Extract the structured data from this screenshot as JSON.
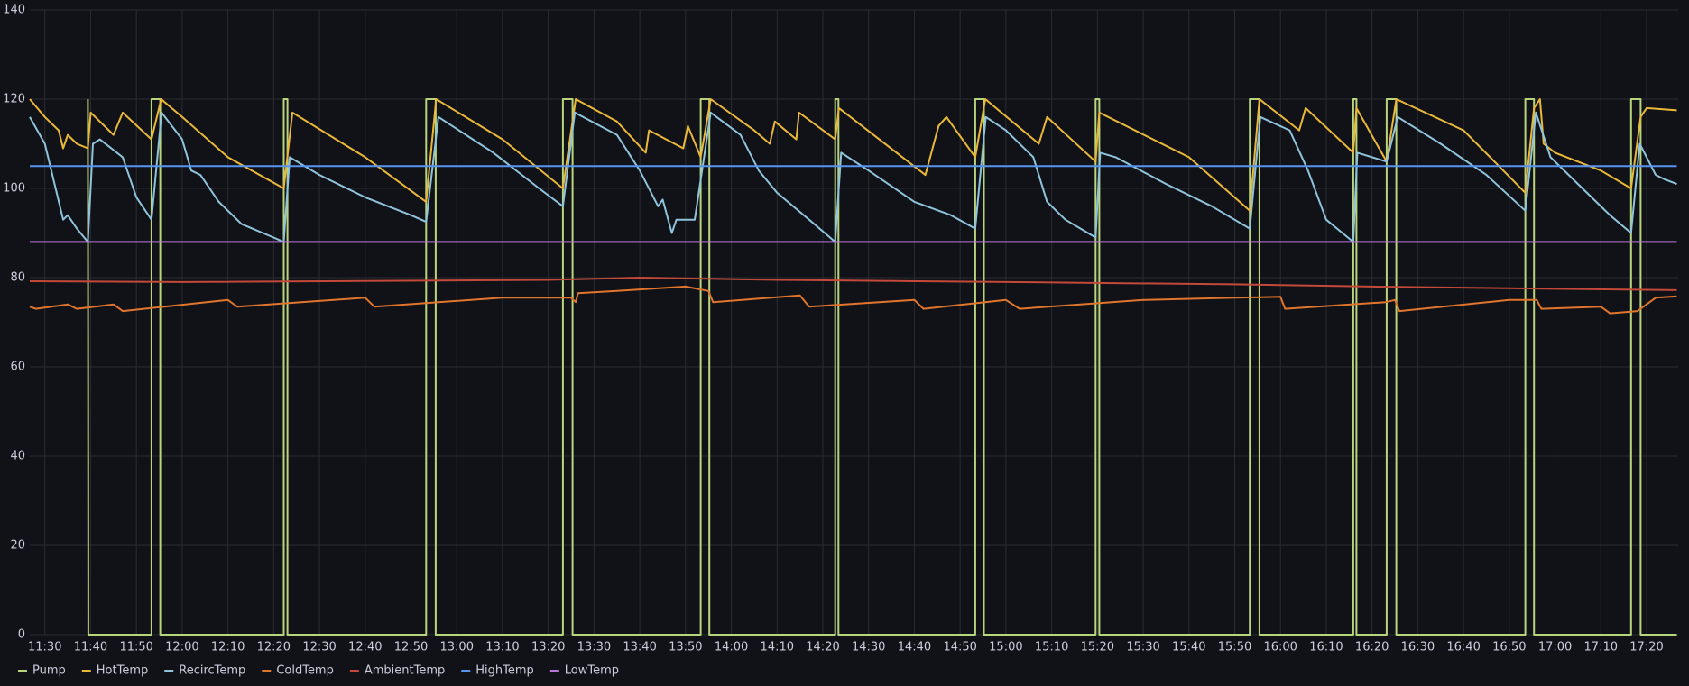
{
  "chart_data": {
    "type": "line",
    "grid": true,
    "legend": "bottom-left",
    "xlim": [
      686.7,
      1046.9
    ],
    "ylim": [
      0,
      140
    ],
    "yticks": [
      0,
      20,
      40,
      60,
      80,
      100,
      120,
      140
    ],
    "xticks": [
      {
        "value": 690,
        "label": "11:30"
      },
      {
        "value": 700,
        "label": "11:40"
      },
      {
        "value": 710,
        "label": "11:50"
      },
      {
        "value": 720,
        "label": "12:00"
      },
      {
        "value": 730,
        "label": "12:10"
      },
      {
        "value": 740,
        "label": "12:20"
      },
      {
        "value": 750,
        "label": "12:30"
      },
      {
        "value": 760,
        "label": "12:40"
      },
      {
        "value": 770,
        "label": "12:50"
      },
      {
        "value": 780,
        "label": "13:00"
      },
      {
        "value": 790,
        "label": "13:10"
      },
      {
        "value": 800,
        "label": "13:20"
      },
      {
        "value": 810,
        "label": "13:30"
      },
      {
        "value": 820,
        "label": "13:40"
      },
      {
        "value": 830,
        "label": "13:50"
      },
      {
        "value": 840,
        "label": "14:00"
      },
      {
        "value": 850,
        "label": "14:10"
      },
      {
        "value": 860,
        "label": "14:20"
      },
      {
        "value": 870,
        "label": "14:30"
      },
      {
        "value": 880,
        "label": "14:40"
      },
      {
        "value": 890,
        "label": "14:50"
      },
      {
        "value": 900,
        "label": "15:00"
      },
      {
        "value": 910,
        "label": "15:10"
      },
      {
        "value": 920,
        "label": "15:20"
      },
      {
        "value": 930,
        "label": "15:30"
      },
      {
        "value": 940,
        "label": "15:40"
      },
      {
        "value": 950,
        "label": "15:50"
      },
      {
        "value": 960,
        "label": "16:00"
      },
      {
        "value": 970,
        "label": "16:10"
      },
      {
        "value": 980,
        "label": "16:20"
      },
      {
        "value": 990,
        "label": "16:30"
      },
      {
        "value": 1000,
        "label": "16:40"
      },
      {
        "value": 1010,
        "label": "16:50"
      },
      {
        "value": 1020,
        "label": "17:00"
      },
      {
        "value": 1030,
        "label": "17:10"
      },
      {
        "value": 1040,
        "label": "17:20"
      }
    ],
    "series": [
      {
        "name": "Pump",
        "color": "#b8d47c",
        "x": [
          699.4,
          699.5,
          713.3,
          713.3,
          715.2,
          715.2,
          742.2,
          742.2,
          743.0,
          743.0,
          773.3,
          773.3,
          775.4,
          775.4,
          803.2,
          803.2,
          805.3,
          805.3,
          833.3,
          833.3,
          835.2,
          835.2,
          862.7,
          862.7,
          863.4,
          863.4,
          893.3,
          893.3,
          895.2,
          895.2,
          919.6,
          919.6,
          920.4,
          920.4,
          953.3,
          953.3,
          955.4,
          955.4,
          975.9,
          975.9,
          976.6,
          976.6,
          983.2,
          983.2,
          985.3,
          985.3,
          1013.5,
          1013.5,
          1015.4,
          1015.4,
          1036.6,
          1036.6,
          1038.7,
          1038.7,
          1046.6
        ],
        "values": [
          120,
          0,
          0,
          120,
          120,
          0,
          0,
          120,
          120,
          0,
          0,
          120,
          120,
          0,
          0,
          120,
          120,
          0,
          0,
          120,
          120,
          0,
          0,
          120,
          120,
          0,
          0,
          120,
          120,
          0,
          0,
          120,
          120,
          0,
          0,
          120,
          120,
          0,
          0,
          120,
          120,
          0,
          0,
          120,
          120,
          0,
          0,
          120,
          120,
          0,
          0,
          120,
          120,
          0,
          0
        ]
      },
      {
        "name": "HotTemp",
        "color": "#eab839",
        "x": [
          686.7,
          690,
          693,
          694,
          695,
          697,
          699.4,
          700,
          704,
          705,
          707,
          713.3,
          715.4,
          720,
          730,
          742.2,
          744.1,
          760,
          773.3,
          775.5,
          790,
          803.2,
          806,
          815,
          821.3,
          822,
          829.5,
          830.5,
          833.3,
          835.5,
          845,
          848.4,
          849.5,
          854.2,
          854.8,
          862.7,
          863.5,
          882.4,
          885.3,
          887,
          893.3,
          895.5,
          907.2,
          909,
          919.6,
          920.4,
          940,
          953.3,
          955.4,
          964.1,
          965.5,
          975.9,
          976.6,
          983.2,
          985.3,
          1000,
          1013.5,
          1015.4,
          1016.7,
          1017.5,
          1020,
          1030,
          1036.6,
          1038.7,
          1040,
          1046.6
        ],
        "values": [
          120,
          116,
          113,
          109,
          112,
          110,
          109,
          117,
          113,
          112,
          117,
          111,
          120,
          116,
          107,
          100,
          117,
          107,
          97,
          120,
          111,
          100,
          120,
          115,
          108,
          113,
          109,
          114,
          107,
          120,
          113,
          110,
          115,
          111,
          117,
          111,
          118,
          103,
          114,
          116,
          107,
          120,
          110,
          116,
          106,
          117,
          107,
          95,
          120,
          113,
          118,
          108,
          118,
          106,
          120,
          113,
          99,
          118,
          120,
          110,
          108,
          104,
          100,
          116,
          118,
          117.5
        ]
      },
      {
        "name": "RecircTemp",
        "color": "#8fc4dc",
        "x": [
          686.7,
          690,
          694,
          695,
          697,
          699.4,
          700.5,
          702,
          707,
          710,
          713.3,
          715.5,
          720,
          722,
          724,
          728,
          733,
          740,
          742.2,
          743.5,
          750,
          760,
          770,
          773.3,
          776,
          788,
          798,
          803.2,
          805.8,
          815,
          820,
          824,
          825,
          827,
          828,
          832,
          835.5,
          842,
          846,
          850,
          857,
          862.7,
          864,
          870,
          880,
          888,
          893.3,
          895.6,
          900,
          906,
          909,
          913,
          919.6,
          920.6,
          924,
          935,
          945,
          953.3,
          955.6,
          962,
          966,
          970,
          975.9,
          976.8,
          983.2,
          985.6,
          995,
          1005,
          1013.5,
          1015.8,
          1019,
          1025,
          1032,
          1036.6,
          1038.5,
          1042,
          1044,
          1046.6
        ],
        "values": [
          116,
          110,
          93,
          94,
          91,
          88,
          110,
          111,
          107,
          98,
          93,
          117,
          111,
          104,
          103,
          97,
          92,
          89,
          88,
          107,
          103,
          98,
          94,
          92.5,
          116,
          108,
          100,
          96,
          117,
          112,
          104,
          96,
          97.5,
          90,
          93,
          93,
          117,
          112,
          104,
          99,
          93,
          88,
          108,
          104,
          97,
          94,
          91,
          116,
          113,
          107,
          97,
          93,
          89,
          108,
          107,
          101,
          96,
          91,
          116,
          113,
          104,
          93,
          88,
          108,
          106,
          116,
          110,
          103,
          95,
          117,
          107,
          101,
          94,
          90,
          110,
          103,
          102,
          101
        ]
      },
      {
        "name": "ColdTemp",
        "color": "#e0752d",
        "x": [
          686.7,
          688,
          695,
          697,
          705,
          707,
          730,
          732,
          760,
          762,
          790,
          805,
          806,
          806.5,
          815,
          830,
          835,
          836,
          855,
          857,
          880,
          882,
          900,
          903,
          930,
          950,
          960,
          961,
          983,
          985,
          986,
          1010,
          1016,
          1017,
          1030,
          1032,
          1038,
          1042,
          1046.6
        ],
        "values": [
          73.5,
          73,
          74,
          73,
          74,
          72.5,
          75,
          73.5,
          75.5,
          73.5,
          75.5,
          75.5,
          74.5,
          76.5,
          77,
          78,
          77,
          74.5,
          76,
          73.5,
          75,
          73,
          75,
          73,
          75,
          75.5,
          75.7,
          73,
          74.5,
          75,
          72.5,
          75,
          75,
          73,
          73.5,
          72,
          72.5,
          75.5,
          75.8
        ]
      },
      {
        "name": "AmbientTemp",
        "color": "#c4493a",
        "x": [
          686.7,
          720,
          800,
          820,
          850,
          900,
          950,
          980,
          1020,
          1046.6
        ],
        "values": [
          79.2,
          79,
          79.5,
          80,
          79.5,
          79,
          78.5,
          78,
          77.5,
          77.2
        ]
      },
      {
        "name": "HighTemp",
        "color": "#5794f2",
        "x": [
          686.7,
          1046.6
        ],
        "values": [
          105,
          105
        ]
      },
      {
        "name": "LowTemp",
        "color": "#b877d9",
        "x": [
          686.7,
          1046.6
        ],
        "values": [
          88,
          88
        ]
      }
    ]
  }
}
